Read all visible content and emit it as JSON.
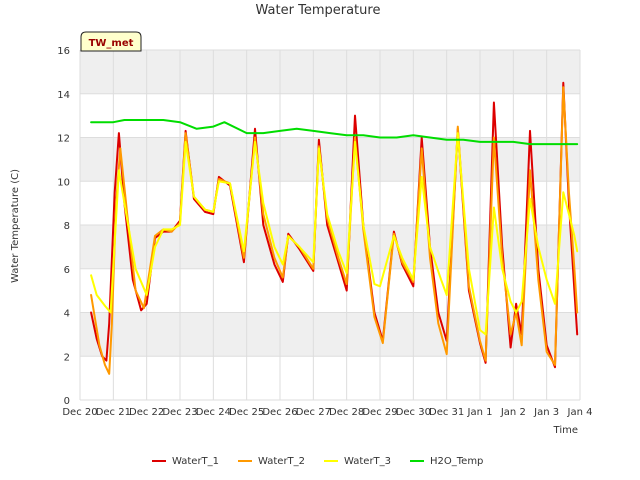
{
  "chart_data": {
    "type": "line",
    "title": "Water Temperature",
    "xlabel": "Time",
    "ylabel": "Water Temperature (C)",
    "station_badge": "TW_met",
    "x_ticks": [
      "Dec 20",
      "Dec 21",
      "Dec 22",
      "Dec 23",
      "Dec 24",
      "Dec 25",
      "Dec 26",
      "Dec 27",
      "Dec 28",
      "Dec 29",
      "Dec 30",
      "Dec 31",
      "Jan 1",
      "Jan 2",
      "Jan 3",
      "Jan 4"
    ],
    "y_ticks": [
      0,
      2,
      4,
      6,
      8,
      10,
      12,
      14,
      16
    ],
    "xlim": [
      "2023-12-20",
      "2024-01-04"
    ],
    "ylim": [
      0,
      16
    ],
    "grid": true,
    "legend_position": "bottom",
    "series": [
      {
        "name": "WaterT_1",
        "color": "#dd0000",
        "points": [
          [
            "2023-12-20 08:00",
            4.0
          ],
          [
            "2023-12-20 12:00",
            2.8
          ],
          [
            "2023-12-20 16:00",
            2.0
          ],
          [
            "2023-12-20 19:00",
            1.8
          ],
          [
            "2023-12-20 21:00",
            3.5
          ],
          [
            "2023-12-21 01:00",
            9.5
          ],
          [
            "2023-12-21 04:00",
            12.2
          ],
          [
            "2023-12-21 08:00",
            9.0
          ],
          [
            "2023-12-21 14:00",
            5.5
          ],
          [
            "2023-12-21 20:00",
            4.1
          ],
          [
            "2023-12-22 00:00",
            4.4
          ],
          [
            "2023-12-22 06:00",
            7.4
          ],
          [
            "2023-12-22 12:00",
            7.7
          ],
          [
            "2023-12-22 18:00",
            7.7
          ],
          [
            "2023-12-23 00:00",
            8.2
          ],
          [
            "2023-12-23 04:00",
            12.3
          ],
          [
            "2023-12-23 10:00",
            9.2
          ],
          [
            "2023-12-23 18:00",
            8.6
          ],
          [
            "2023-12-24 00:00",
            8.5
          ],
          [
            "2023-12-24 04:00",
            10.2
          ],
          [
            "2023-12-24 12:00",
            9.8
          ],
          [
            "2023-12-24 22:00",
            6.3
          ],
          [
            "2023-12-25 06:00",
            12.4
          ],
          [
            "2023-12-25 12:00",
            8.0
          ],
          [
            "2023-12-25 20:00",
            6.2
          ],
          [
            "2023-12-26 02:00",
            5.4
          ],
          [
            "2023-12-26 06:00",
            7.6
          ],
          [
            "2023-12-26 14:00",
            6.9
          ],
          [
            "2023-12-27 00:00",
            5.9
          ],
          [
            "2023-12-27 04:00",
            11.9
          ],
          [
            "2023-12-27 10:00",
            8.0
          ],
          [
            "2023-12-27 18:00",
            6.3
          ],
          [
            "2023-12-28 00:00",
            5.0
          ],
          [
            "2023-12-28 06:00",
            13.0
          ],
          [
            "2023-12-28 12:00",
            8.0
          ],
          [
            "2023-12-28 20:00",
            4.0
          ],
          [
            "2023-12-29 02:00",
            2.7
          ],
          [
            "2023-12-29 10:00",
            7.7
          ],
          [
            "2023-12-29 16:00",
            6.2
          ],
          [
            "2023-12-30 00:00",
            5.2
          ],
          [
            "2023-12-30 06:00",
            12.0
          ],
          [
            "2023-12-30 12:00",
            7.0
          ],
          [
            "2023-12-30 18:00",
            4.0
          ],
          [
            "2023-12-31 00:00",
            2.7
          ],
          [
            "2023-12-31 08:00",
            12.4
          ],
          [
            "2023-12-31 16:00",
            5.0
          ],
          [
            "2024-01-01 00:00",
            2.6
          ],
          [
            "2024-01-01 04:00",
            1.7
          ],
          [
            "2024-01-01 10:00",
            13.6
          ],
          [
            "2024-01-01 16:00",
            7.0
          ],
          [
            "2024-01-01 22:00",
            2.4
          ],
          [
            "2024-01-02 02:00",
            4.4
          ],
          [
            "2024-01-02 06:00",
            3.0
          ],
          [
            "2024-01-02 12:00",
            12.3
          ],
          [
            "2024-01-02 18:00",
            6.0
          ],
          [
            "2024-01-03 00:00",
            2.5
          ],
          [
            "2024-01-03 06:00",
            1.5
          ],
          [
            "2024-01-03 12:00",
            14.5
          ],
          [
            "2024-01-03 16:00",
            9.0
          ],
          [
            "2024-01-03 20:00",
            5.0
          ],
          [
            "2024-01-03 22:00",
            3.0
          ]
        ]
      },
      {
        "name": "WaterT_2",
        "color": "#ff9900",
        "points": [
          [
            "2023-12-20 08:00",
            4.8
          ],
          [
            "2023-12-20 14:00",
            2.5
          ],
          [
            "2023-12-20 18:00",
            1.6
          ],
          [
            "2023-12-20 21:00",
            1.2
          ],
          [
            "2023-12-20 23:00",
            3.5
          ],
          [
            "2023-12-21 02:00",
            9.0
          ],
          [
            "2023-12-21 05:00",
            11.5
          ],
          [
            "2023-12-21 10:00",
            8.5
          ],
          [
            "2023-12-21 16:00",
            5.0
          ],
          [
            "2023-12-21 22:00",
            4.2
          ],
          [
            "2023-12-22 06:00",
            7.5
          ],
          [
            "2023-12-22 12:00",
            7.8
          ],
          [
            "2023-12-22 18:00",
            7.7
          ],
          [
            "2023-12-23 00:00",
            8.1
          ],
          [
            "2023-12-23 04:00",
            12.2
          ],
          [
            "2023-12-23 10:00",
            9.3
          ],
          [
            "2023-12-23 18:00",
            8.7
          ],
          [
            "2023-12-24 00:00",
            8.6
          ],
          [
            "2023-12-24 04:00",
            10.1
          ],
          [
            "2023-12-24 12:00",
            9.9
          ],
          [
            "2023-12-24 22:00",
            6.5
          ],
          [
            "2023-12-25 06:00",
            12.0
          ],
          [
            "2023-12-25 12:00",
            8.5
          ],
          [
            "2023-12-25 20:00",
            6.5
          ],
          [
            "2023-12-26 02:00",
            5.6
          ],
          [
            "2023-12-26 06:00",
            7.5
          ],
          [
            "2023-12-26 14:00",
            7.0
          ],
          [
            "2023-12-27 00:00",
            6.0
          ],
          [
            "2023-12-27 04:00",
            11.6
          ],
          [
            "2023-12-27 10:00",
            8.3
          ],
          [
            "2023-12-27 18:00",
            6.5
          ],
          [
            "2023-12-28 00:00",
            5.3
          ],
          [
            "2023-12-28 06:00",
            12.0
          ],
          [
            "2023-12-28 12:00",
            7.8
          ],
          [
            "2023-12-28 20:00",
            3.8
          ],
          [
            "2023-12-29 02:00",
            2.6
          ],
          [
            "2023-12-29 10:00",
            7.6
          ],
          [
            "2023-12-29 16:00",
            6.3
          ],
          [
            "2023-12-30 00:00",
            5.4
          ],
          [
            "2023-12-30 06:00",
            11.5
          ],
          [
            "2023-12-30 12:00",
            6.5
          ],
          [
            "2023-12-30 18:00",
            3.5
          ],
          [
            "2023-12-31 00:00",
            2.1
          ],
          [
            "2023-12-31 08:00",
            12.5
          ],
          [
            "2023-12-31 16:00",
            5.2
          ],
          [
            "2024-01-01 00:00",
            2.7
          ],
          [
            "2024-01-01 04:00",
            1.8
          ],
          [
            "2024-01-01 10:00",
            12.0
          ],
          [
            "2024-01-01 16:00",
            6.5
          ],
          [
            "2024-01-01 22:00",
            3.0
          ],
          [
            "2024-01-02 02:00",
            4.0
          ],
          [
            "2024-01-02 06:00",
            2.5
          ],
          [
            "2024-01-02 12:00",
            10.5
          ],
          [
            "2024-01-02 18:00",
            5.5
          ],
          [
            "2024-01-03 00:00",
            2.2
          ],
          [
            "2024-01-03 06:00",
            1.6
          ],
          [
            "2024-01-03 12:00",
            14.3
          ],
          [
            "2024-01-03 16:00",
            9.5
          ],
          [
            "2024-01-03 20:00",
            6.0
          ],
          [
            "2024-01-03 22:00",
            4.0
          ]
        ]
      },
      {
        "name": "WaterT_3",
        "color": "#ffff00",
        "points": [
          [
            "2023-12-20 08:00",
            5.7
          ],
          [
            "2023-12-20 12:00",
            4.8
          ],
          [
            "2023-12-20 18:00",
            4.3
          ],
          [
            "2023-12-20 22:00",
            4.0
          ],
          [
            "2023-12-21 04:00",
            10.5
          ],
          [
            "2023-12-21 08:00",
            9.0
          ],
          [
            "2023-12-21 16:00",
            6.0
          ],
          [
            "2023-12-22 00:00",
            4.8
          ],
          [
            "2023-12-22 06:00",
            7.0
          ],
          [
            "2023-12-22 12:00",
            7.8
          ],
          [
            "2023-12-22 18:00",
            7.8
          ],
          [
            "2023-12-23 00:00",
            8.0
          ],
          [
            "2023-12-23 04:00",
            11.8
          ],
          [
            "2023-12-23 10:00",
            9.3
          ],
          [
            "2023-12-23 18:00",
            8.7
          ],
          [
            "2023-12-24 00:00",
            8.6
          ],
          [
            "2023-12-24 04:00",
            10.0
          ],
          [
            "2023-12-24 12:00",
            9.9
          ],
          [
            "2023-12-24 22:00",
            6.8
          ],
          [
            "2023-12-25 06:00",
            11.8
          ],
          [
            "2023-12-25 12:00",
            9.0
          ],
          [
            "2023-12-25 20:00",
            7.0
          ],
          [
            "2023-12-26 02:00",
            6.2
          ],
          [
            "2023-12-26 06:00",
            7.5
          ],
          [
            "2023-12-26 14:00",
            7.0
          ],
          [
            "2023-12-27 00:00",
            6.3
          ],
          [
            "2023-12-27 04:00",
            11.5
          ],
          [
            "2023-12-27 10:00",
            8.5
          ],
          [
            "2023-12-27 18:00",
            6.8
          ],
          [
            "2023-12-28 00:00",
            5.8
          ],
          [
            "2023-12-28 06:00",
            11.8
          ],
          [
            "2023-12-28 12:00",
            8.0
          ],
          [
            "2023-12-28 20:00",
            5.3
          ],
          [
            "2023-12-29 00:00",
            5.2
          ],
          [
            "2023-12-29 10:00",
            7.5
          ],
          [
            "2023-12-29 16:00",
            6.5
          ],
          [
            "2023-12-30 00:00",
            5.5
          ],
          [
            "2023-12-30 06:00",
            10.2
          ],
          [
            "2023-12-30 12:00",
            7.0
          ],
          [
            "2023-12-30 20:00",
            5.5
          ],
          [
            "2023-12-31 00:00",
            4.8
          ],
          [
            "2023-12-31 08:00",
            12.2
          ],
          [
            "2023-12-31 16:00",
            6.0
          ],
          [
            "2024-01-01 00:00",
            3.2
          ],
          [
            "2024-01-01 04:00",
            3.0
          ],
          [
            "2024-01-01 10:00",
            8.8
          ],
          [
            "2024-01-01 16:00",
            6.0
          ],
          [
            "2024-01-01 22:00",
            4.5
          ],
          [
            "2024-01-02 02:00",
            4.0
          ],
          [
            "2024-01-02 06:00",
            4.5
          ],
          [
            "2024-01-02 12:00",
            9.2
          ],
          [
            "2024-01-02 18:00",
            7.0
          ],
          [
            "2024-01-03 00:00",
            5.5
          ],
          [
            "2024-01-03 06:00",
            4.4
          ],
          [
            "2024-01-03 12:00",
            9.5
          ],
          [
            "2024-01-03 16:00",
            8.5
          ],
          [
            "2024-01-03 20:00",
            7.5
          ],
          [
            "2024-01-03 22:00",
            6.8
          ]
        ]
      },
      {
        "name": "H2O_Temp",
        "color": "#00dd00",
        "points": [
          [
            "2023-12-20 08:00",
            12.7
          ],
          [
            "2023-12-21 00:00",
            12.7
          ],
          [
            "2023-12-21 08:00",
            12.8
          ],
          [
            "2023-12-22 00:00",
            12.8
          ],
          [
            "2023-12-22 12:00",
            12.8
          ],
          [
            "2023-12-23 00:00",
            12.7
          ],
          [
            "2023-12-23 12:00",
            12.4
          ],
          [
            "2023-12-24 00:00",
            12.5
          ],
          [
            "2023-12-24 08:00",
            12.7
          ],
          [
            "2023-12-25 00:00",
            12.2
          ],
          [
            "2023-12-25 12:00",
            12.2
          ],
          [
            "2023-12-26 00:00",
            12.3
          ],
          [
            "2023-12-26 12:00",
            12.4
          ],
          [
            "2023-12-27 00:00",
            12.3
          ],
          [
            "2023-12-27 12:00",
            12.2
          ],
          [
            "2023-12-28 00:00",
            12.1
          ],
          [
            "2023-12-28 12:00",
            12.1
          ],
          [
            "2023-12-29 00:00",
            12.0
          ],
          [
            "2023-12-29 12:00",
            12.0
          ],
          [
            "2023-12-30 00:00",
            12.1
          ],
          [
            "2023-12-30 12:00",
            12.0
          ],
          [
            "2023-12-31 00:00",
            11.9
          ],
          [
            "2023-12-31 12:00",
            11.9
          ],
          [
            "2024-01-01 00:00",
            11.8
          ],
          [
            "2024-01-01 12:00",
            11.8
          ],
          [
            "2024-01-02 00:00",
            11.8
          ],
          [
            "2024-01-02 12:00",
            11.7
          ],
          [
            "2024-01-03 00:00",
            11.7
          ],
          [
            "2024-01-03 12:00",
            11.7
          ],
          [
            "2024-01-03 22:00",
            11.7
          ]
        ]
      }
    ]
  }
}
